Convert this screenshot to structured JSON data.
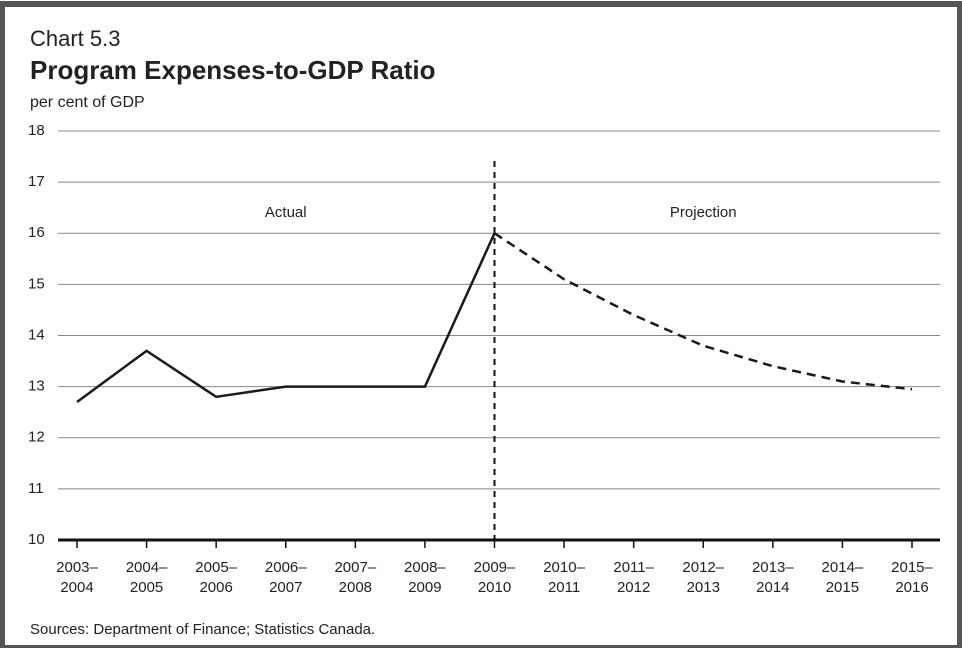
{
  "chart_data": {
    "type": "line",
    "title": "Chart 5.3",
    "subtitle": "Program Expenses-to-GDP Ratio",
    "y_label": "per cent of GDP",
    "source": "Sources: Department of Finance; Statistics Canada.",
    "categories": [
      "2003–2004",
      "2004–2005",
      "2005–2006",
      "2006–2007",
      "2007–2008",
      "2008–2009",
      "2009–2010",
      "2010–2011",
      "2011–2012",
      "2012–2013",
      "2013–2014",
      "2014–2015",
      "2015–2016"
    ],
    "series": [
      {
        "name": "Actual",
        "color": "#1a1a1a",
        "dash": false,
        "values": [
          12.7,
          13.7,
          12.8,
          13.0,
          13.0,
          13.0,
          16.0,
          null,
          null,
          null,
          null,
          null,
          null
        ]
      },
      {
        "name": "Projection",
        "color": "#1a1a1a",
        "dash": true,
        "values": [
          null,
          null,
          null,
          null,
          null,
          null,
          16.0,
          15.1,
          14.4,
          13.8,
          13.4,
          13.1,
          12.95
        ]
      }
    ],
    "ylim": [
      10,
      18
    ],
    "yticks": [
      10,
      11,
      12,
      13,
      14,
      15,
      16,
      17,
      18
    ],
    "grid": true
  }
}
